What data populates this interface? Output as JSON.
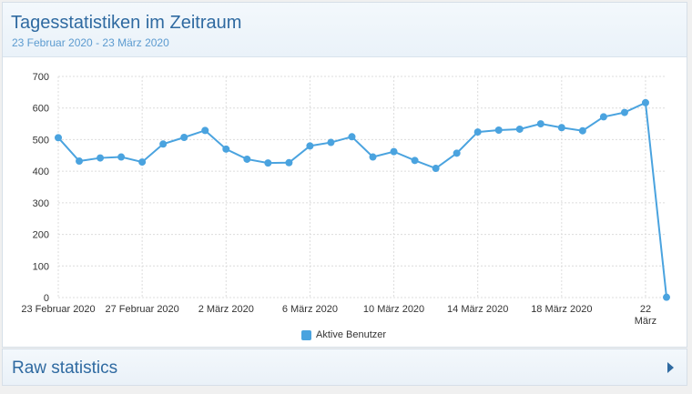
{
  "header": {
    "title": "Tagesstatistiken im Zeitraum",
    "subtitle": "23 Februar 2020 - 23 März 2020"
  },
  "chart_data": {
    "type": "line",
    "x": [
      "23 Februar 2020",
      "24 Februar 2020",
      "25 Februar 2020",
      "26 Februar 2020",
      "27 Februar 2020",
      "28 Februar 2020",
      "29 Februar 2020",
      "1 März 2020",
      "2 März 2020",
      "3 März 2020",
      "4 März 2020",
      "5 März 2020",
      "6 März 2020",
      "7 März 2020",
      "8 März 2020",
      "9 März 2020",
      "10 März 2020",
      "11 März 2020",
      "12 März 2020",
      "13 März 2020",
      "14 März 2020",
      "15 März 2020",
      "16 März 2020",
      "17 März 2020",
      "18 März 2020",
      "19 März 2020",
      "20 März 2020",
      "21 März 2020",
      "22 März 2020",
      "23 März 2020"
    ],
    "series": [
      {
        "name": "Aktive Benutzer",
        "color": "#4aa3df",
        "values": [
          506,
          432,
          442,
          445,
          429,
          486,
          507,
          529,
          470,
          438,
          426,
          427,
          480,
          491,
          509,
          445,
          462,
          434,
          409,
          457,
          524,
          530,
          533,
          550,
          538,
          528,
          572,
          586,
          617,
          1
        ]
      }
    ],
    "ylim": [
      0,
      700
    ],
    "yticks": [
      0,
      100,
      200,
      300,
      400,
      500,
      600,
      700
    ],
    "xtick_indices": [
      0,
      4,
      8,
      12,
      16,
      20,
      24,
      28
    ],
    "xtick_labels": [
      "23 Februar 2020",
      "27 Februar 2020",
      "2 März 2020",
      "6 März 2020",
      "10 März 2020",
      "14 März 2020",
      "18 März 2020",
      "22 März 2020"
    ],
    "grid": true,
    "legend": "bottom-center"
  },
  "legend": {
    "label": "Aktive Benutzer"
  },
  "raw": {
    "title": "Raw statistics"
  }
}
